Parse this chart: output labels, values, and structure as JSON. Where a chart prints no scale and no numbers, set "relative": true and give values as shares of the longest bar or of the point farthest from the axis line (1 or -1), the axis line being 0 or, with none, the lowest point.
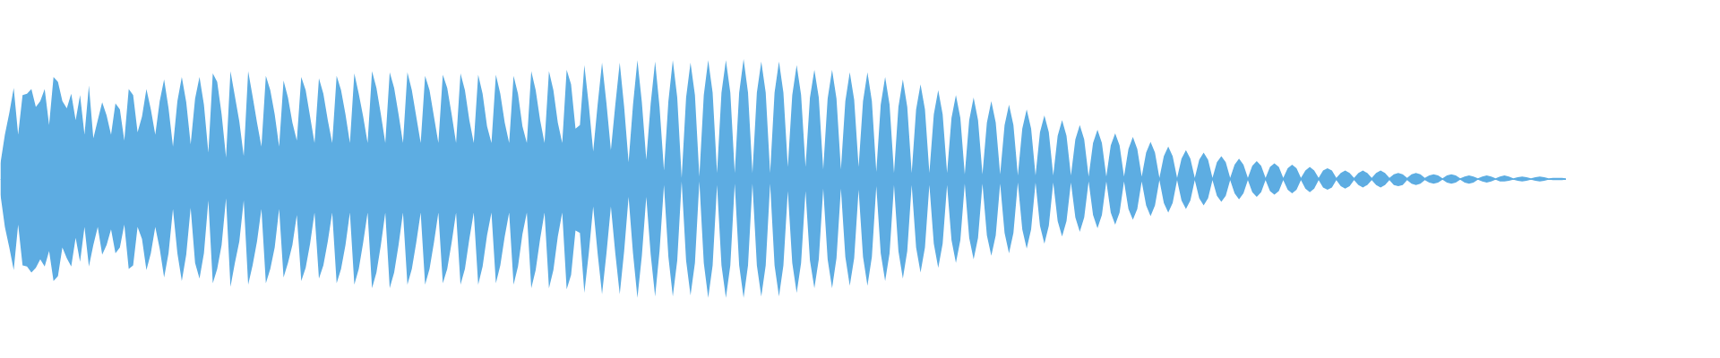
{
  "chart_data": {
    "type": "area",
    "relative": true,
    "ref_lines": [
      {
        "axis": "y",
        "value": 0,
        "color": "#5dade2"
      }
    ],
    "categories": [
      null,
      null,
      null,
      null,
      null,
      null,
      null,
      null,
      null,
      null,
      null,
      null,
      null,
      null,
      null,
      null,
      null,
      null,
      null,
      null,
      null,
      null,
      null,
      null,
      null,
      null,
      null,
      null,
      null,
      null,
      null,
      null,
      null,
      null,
      null,
      null,
      null,
      null,
      null,
      null,
      null,
      null,
      null,
      null,
      null,
      null,
      null,
      null,
      null,
      null,
      null,
      null,
      null,
      null,
      null,
      null,
      null,
      null,
      null,
      null,
      null,
      null,
      null,
      null,
      null,
      null,
      null,
      null,
      null,
      null,
      null,
      null,
      null,
      null,
      null,
      null,
      null,
      null,
      null,
      null,
      null,
      null,
      null,
      null,
      null,
      null,
      null,
      null,
      null,
      null,
      null,
      null,
      null,
      null,
      null,
      null,
      null,
      null,
      null,
      null,
      null,
      null,
      null,
      null,
      null,
      null,
      null,
      null,
      null,
      null,
      null,
      null,
      null,
      null,
      null,
      null,
      null,
      null,
      null,
      null,
      null,
      null,
      null,
      null,
      null,
      null,
      null,
      null,
      null,
      null,
      null,
      null,
      null,
      null,
      null,
      null,
      null,
      null,
      null,
      null,
      null,
      null,
      null,
      null,
      null,
      null,
      null,
      null,
      null,
      null,
      null,
      null,
      null,
      null,
      null,
      null,
      null,
      null,
      null,
      null,
      null,
      null,
      null,
      null,
      null,
      null,
      null,
      null,
      null,
      null,
      null,
      null,
      null,
      null,
      null,
      null,
      null,
      null,
      null,
      null,
      null,
      null,
      null,
      null,
      null,
      null,
      null,
      null,
      null,
      null,
      null,
      null,
      null,
      null,
      null,
      null,
      null,
      null,
      null,
      null,
      null,
      null,
      null,
      null,
      null,
      null,
      null,
      null,
      null,
      null,
      null,
      null,
      null,
      null,
      null,
      null,
      null,
      null,
      null,
      null,
      null,
      null,
      null,
      null,
      null,
      null,
      null,
      null,
      null,
      null,
      null,
      null,
      null,
      null,
      null,
      null,
      null,
      null,
      null,
      null,
      null,
      null,
      null,
      null,
      null,
      null,
      null,
      null,
      null,
      null,
      null,
      null,
      null,
      null,
      null,
      null,
      null,
      null,
      null,
      null,
      null,
      null,
      null,
      null,
      null,
      null,
      null,
      null,
      null,
      null,
      null,
      null,
      null,
      null,
      null,
      null,
      null,
      null,
      null,
      null,
      null,
      null,
      null,
      null,
      null,
      null,
      null,
      null,
      null,
      null,
      null,
      null,
      null,
      null,
      null,
      null,
      null,
      null,
      null,
      null,
      null,
      null,
      null,
      null,
      null,
      null,
      null,
      null,
      null,
      null,
      null,
      null,
      null,
      null,
      null,
      null,
      null,
      null,
      null,
      null,
      null,
      null,
      null,
      null,
      null,
      null,
      null,
      null,
      null,
      null,
      null,
      null,
      null,
      null,
      null,
      null,
      null,
      null,
      null,
      null,
      null,
      null,
      null,
      null,
      null,
      null,
      null,
      null,
      null,
      null,
      null,
      null,
      null,
      null,
      null
    ],
    "series": [
      {
        "color": "#5dade2",
        "values": [
          0.13,
          0.37,
          0.55,
          0.76,
          0.37,
          0.7,
          0.71,
          0.75,
          0.6,
          0.65,
          0.75,
          0.45,
          0.85,
          0.81,
          0.65,
          0.59,
          0.71,
          0.49,
          0.7,
          0.37,
          0.78,
          0.34,
          0.49,
          0.64,
          0.53,
          0.37,
          0.63,
          0.58,
          0.32,
          0.75,
          0.7,
          0.39,
          0.52,
          0.75,
          0.58,
          0.37,
          0.65,
          0.83,
          0.59,
          0.27,
          0.65,
          0.85,
          0.64,
          0.29,
          0.67,
          0.85,
          0.62,
          0.22,
          0.88,
          0.81,
          0.54,
          0.18,
          0.9,
          0.69,
          0.48,
          0.19,
          0.9,
          0.69,
          0.47,
          0.27,
          0.86,
          0.74,
          0.54,
          0.27,
          0.82,
          0.68,
          0.47,
          0.32,
          0.85,
          0.74,
          0.52,
          0.3,
          0.84,
          0.71,
          0.49,
          0.3,
          0.86,
          0.74,
          0.54,
          0.3,
          0.88,
          0.71,
          0.52,
          0.3,
          0.9,
          0.76,
          0.54,
          0.3,
          0.89,
          0.76,
          0.54,
          0.3,
          0.89,
          0.74,
          0.52,
          0.3,
          0.86,
          0.74,
          0.52,
          0.3,
          0.87,
          0.76,
          0.54,
          0.3,
          0.88,
          0.74,
          0.49,
          0.3,
          0.87,
          0.71,
          0.44,
          0.3,
          0.87,
          0.71,
          0.47,
          0.3,
          0.86,
          0.71,
          0.44,
          0.3,
          0.9,
          0.74,
          0.49,
          0.3,
          0.9,
          0.74,
          0.47,
          0.3,
          0.91,
          0.79,
          0.42,
          0.45,
          0.95,
          0.62,
          0.23,
          0.62,
          0.97,
          0.63,
          0.24,
          0.62,
          0.97,
          0.6,
          0.14,
          0.62,
          0.99,
          0.64,
          0.16,
          0.63,
          0.98,
          0.6,
          0.07,
          0.65,
          0.99,
          0.68,
          0.01,
          0.68,
          0.97,
          0.7,
          0.02,
          0.7,
          0.99,
          0.72,
          0.05,
          0.72,
          0.99,
          0.72,
          0.05,
          0.72,
          1.0,
          0.72,
          0.05,
          0.72,
          0.98,
          0.72,
          0.05,
          0.72,
          0.98,
          0.72,
          0.1,
          0.7,
          0.95,
          0.7,
          0.1,
          0.68,
          0.91,
          0.68,
          0.08,
          0.67,
          0.91,
          0.67,
          0.08,
          0.65,
          0.89,
          0.66,
          0.1,
          0.65,
          0.89,
          0.65,
          0.06,
          0.62,
          0.85,
          0.62,
          0.05,
          0.6,
          0.83,
          0.6,
          0.05,
          0.58,
          0.79,
          0.58,
          0.05,
          0.54,
          0.74,
          0.54,
          0.05,
          0.51,
          0.7,
          0.51,
          0.04,
          0.49,
          0.68,
          0.49,
          0.04,
          0.47,
          0.65,
          0.47,
          0.04,
          0.45,
          0.62,
          0.45,
          0.03,
          0.42,
          0.58,
          0.42,
          0.03,
          0.39,
          0.53,
          0.39,
          0.03,
          0.36,
          0.49,
          0.36,
          0.03,
          0.33,
          0.45,
          0.33,
          0.02,
          0.3,
          0.41,
          0.3,
          0.02,
          0.28,
          0.38,
          0.28,
          0.02,
          0.25,
          0.35,
          0.25,
          0.02,
          0.22,
          0.31,
          0.22,
          0.01,
          0.19,
          0.27,
          0.19,
          0.01,
          0.17,
          0.24,
          0.17,
          0.01,
          0.16,
          0.22,
          0.16,
          0.01,
          0.14,
          0.19,
          0.14,
          0.01,
          0.12,
          0.17,
          0.12,
          0.01,
          0.11,
          0.15,
          0.11,
          0.01,
          0.1,
          0.13,
          0.1,
          0.01,
          0.09,
          0.12,
          0.09,
          0.01,
          0.07,
          0.1,
          0.07,
          0.01,
          0.07,
          0.09,
          0.07,
          0.01,
          0.05,
          0.07,
          0.05,
          0.01,
          0.05,
          0.07,
          0.05,
          0.01,
          0.05,
          0.07,
          0.05,
          0.01,
          0.04,
          0.05,
          0.04,
          0.01,
          0.04,
          0.05,
          0.04,
          0.01,
          0.03,
          0.04,
          0.03,
          0.005,
          0.03,
          0.04,
          0.03,
          0.005,
          0.02,
          0.03,
          0.02,
          0.005,
          0.02,
          0.03,
          0.02,
          0.005,
          0.02,
          0.03,
          0.02,
          0.005,
          0.015,
          0.02,
          0.015,
          0.005,
          0.015,
          0.02,
          0.015,
          0.005,
          0.01,
          0.01,
          0.01,
          0.005
        ]
      },
      {
        "color": "#5dace2",
        "values": [
          -0.13,
          -0.4,
          -0.57,
          -0.76,
          -0.38,
          -0.72,
          -0.73,
          -0.78,
          -0.74,
          -0.67,
          -0.73,
          -0.6,
          -0.85,
          -0.81,
          -0.57,
          -0.66,
          -0.73,
          -0.49,
          -0.69,
          -0.4,
          -0.73,
          -0.55,
          -0.4,
          -0.63,
          -0.55,
          -0.42,
          -0.62,
          -0.57,
          -0.38,
          -0.75,
          -0.72,
          -0.4,
          -0.5,
          -0.76,
          -0.62,
          -0.4,
          -0.58,
          -0.82,
          -0.62,
          -0.25,
          -0.62,
          -0.85,
          -0.63,
          -0.24,
          -0.7,
          -0.83,
          -0.62,
          -0.18,
          -0.87,
          -0.75,
          -0.55,
          -0.16,
          -0.9,
          -0.7,
          -0.52,
          -0.18,
          -0.88,
          -0.72,
          -0.52,
          -0.25,
          -0.87,
          -0.75,
          -0.57,
          -0.25,
          -0.82,
          -0.7,
          -0.55,
          -0.3,
          -0.85,
          -0.74,
          -0.54,
          -0.28,
          -0.83,
          -0.72,
          -0.52,
          -0.28,
          -0.87,
          -0.75,
          -0.55,
          -0.28,
          -0.88,
          -0.75,
          -0.53,
          -0.28,
          -0.91,
          -0.78,
          -0.55,
          -0.28,
          -0.91,
          -0.78,
          -0.55,
          -0.28,
          -0.88,
          -0.75,
          -0.53,
          -0.28,
          -0.88,
          -0.75,
          -0.53,
          -0.28,
          -0.87,
          -0.75,
          -0.53,
          -0.28,
          -0.88,
          -0.75,
          -0.5,
          -0.28,
          -0.88,
          -0.73,
          -0.47,
          -0.28,
          -0.87,
          -0.72,
          -0.48,
          -0.28,
          -0.88,
          -0.73,
          -0.46,
          -0.28,
          -0.91,
          -0.76,
          -0.5,
          -0.28,
          -0.91,
          -0.76,
          -0.48,
          -0.28,
          -0.92,
          -0.8,
          -0.43,
          -0.45,
          -0.95,
          -0.62,
          -0.23,
          -0.62,
          -0.96,
          -0.62,
          -0.23,
          -0.62,
          -0.96,
          -0.6,
          -0.15,
          -0.62,
          -0.99,
          -0.64,
          -0.15,
          -0.63,
          -0.98,
          -0.6,
          -0.05,
          -0.65,
          -0.98,
          -0.68,
          -0.02,
          -0.68,
          -0.97,
          -0.7,
          -0.02,
          -0.7,
          -0.99,
          -0.72,
          -0.05,
          -0.72,
          -0.99,
          -0.72,
          -0.04,
          -0.72,
          -0.99,
          -0.72,
          -0.04,
          -0.72,
          -0.98,
          -0.72,
          -0.04,
          -0.72,
          -0.98,
          -0.72,
          -0.1,
          -0.7,
          -0.95,
          -0.7,
          -0.1,
          -0.68,
          -0.91,
          -0.67,
          -0.08,
          -0.67,
          -0.91,
          -0.66,
          -0.08,
          -0.65,
          -0.89,
          -0.66,
          -0.09,
          -0.65,
          -0.89,
          -0.65,
          -0.06,
          -0.62,
          -0.85,
          -0.62,
          -0.05,
          -0.6,
          -0.83,
          -0.6,
          -0.05,
          -0.57,
          -0.78,
          -0.57,
          -0.05,
          -0.54,
          -0.74,
          -0.54,
          -0.05,
          -0.51,
          -0.7,
          -0.51,
          -0.04,
          -0.49,
          -0.67,
          -0.49,
          -0.04,
          -0.47,
          -0.64,
          -0.47,
          -0.04,
          -0.45,
          -0.62,
          -0.45,
          -0.03,
          -0.42,
          -0.58,
          -0.42,
          -0.03,
          -0.39,
          -0.54,
          -0.39,
          -0.03,
          -0.35,
          -0.48,
          -0.35,
          -0.03,
          -0.32,
          -0.44,
          -0.32,
          -0.02,
          -0.3,
          -0.41,
          -0.3,
          -0.02,
          -0.28,
          -0.38,
          -0.28,
          -0.02,
          -0.25,
          -0.34,
          -0.25,
          -0.02,
          -0.22,
          -0.31,
          -0.22,
          -0.01,
          -0.2,
          -0.28,
          -0.2,
          -0.01,
          -0.18,
          -0.25,
          -0.18,
          -0.01,
          -0.16,
          -0.22,
          -0.16,
          -0.01,
          -0.14,
          -0.19,
          -0.14,
          -0.01,
          -0.12,
          -0.17,
          -0.12,
          -0.01,
          -0.11,
          -0.15,
          -0.11,
          -0.01,
          -0.1,
          -0.13,
          -0.1,
          -0.01,
          -0.09,
          -0.12,
          -0.09,
          -0.01,
          -0.08,
          -0.11,
          -0.08,
          -0.01,
          -0.07,
          -0.09,
          -0.07,
          -0.01,
          -0.06,
          -0.08,
          -0.06,
          -0.01,
          -0.05,
          -0.07,
          -0.05,
          -0.01,
          -0.05,
          -0.07,
          -0.05,
          -0.01,
          -0.05,
          -0.06,
          -0.05,
          -0.01,
          -0.04,
          -0.05,
          -0.04,
          -0.01,
          -0.03,
          -0.04,
          -0.03,
          -0.005,
          -0.03,
          -0.04,
          -0.03,
          -0.005,
          -0.03,
          -0.04,
          -0.03,
          -0.005,
          -0.02,
          -0.03,
          -0.02,
          -0.005,
          -0.02,
          -0.02,
          -0.015,
          -0.005,
          -0.015,
          -0.02,
          -0.015,
          -0.005,
          -0.015,
          -0.02,
          -0.015,
          -0.005,
          -0.01,
          -0.01,
          -0.01,
          -0.005
        ]
      }
    ]
  }
}
